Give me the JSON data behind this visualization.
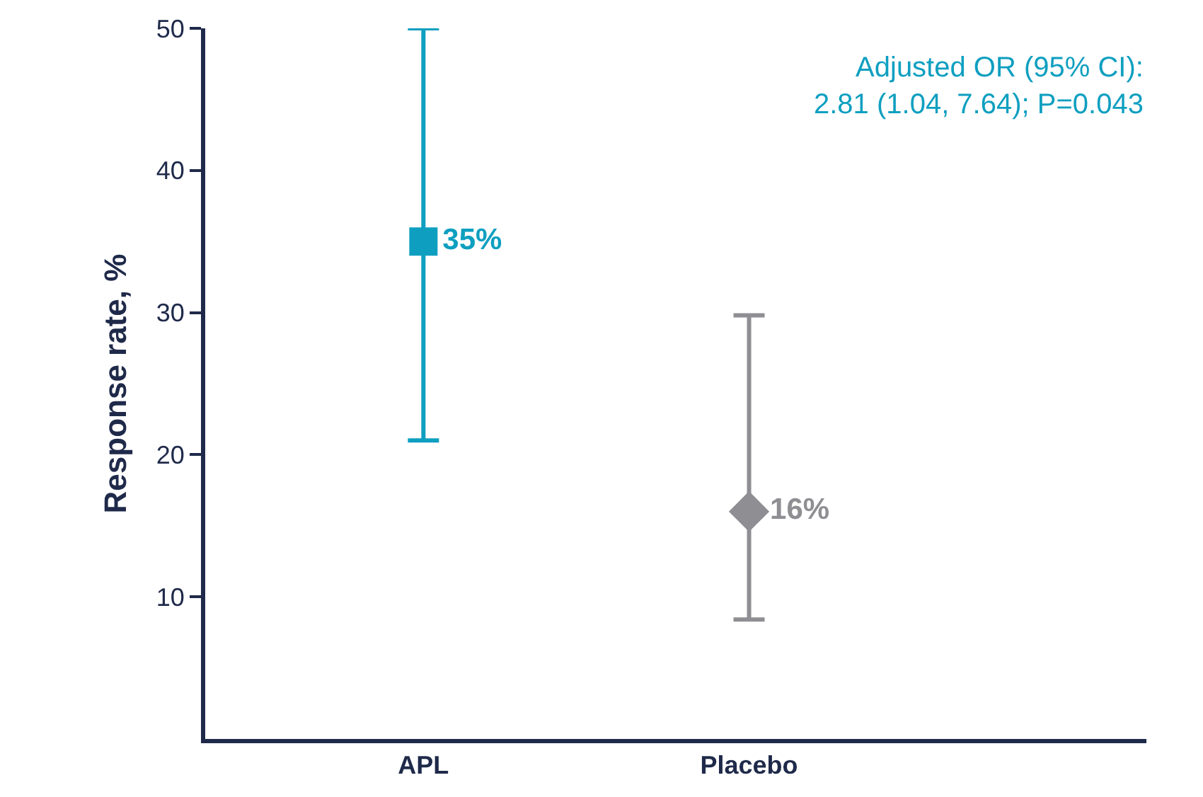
{
  "chart_data": {
    "type": "scatter",
    "ylabel": "Response rate, %",
    "categories": [
      "APL",
      "Placebo"
    ],
    "series": [
      {
        "color": "#0e9fc0",
        "values": [
          35,
          null
        ],
        "errors": [
          [
            21,
            50
          ],
          null
        ],
        "marker": "square",
        "value_labels": [
          "35%",
          null
        ]
      },
      {
        "color": "#8e8e93",
        "values": [
          null,
          16
        ],
        "errors": [
          null,
          [
            8.4,
            29.8
          ]
        ],
        "marker": "diamond",
        "value_labels": [
          null,
          "16%"
        ]
      }
    ],
    "ylim": [
      0,
      50
    ],
    "yticks": [
      10,
      20,
      30,
      40,
      50
    ],
    "annotations": [
      "Adjusted OR (95% CI):\n2.81 (1.04, 7.64); P=0.043"
    ]
  }
}
